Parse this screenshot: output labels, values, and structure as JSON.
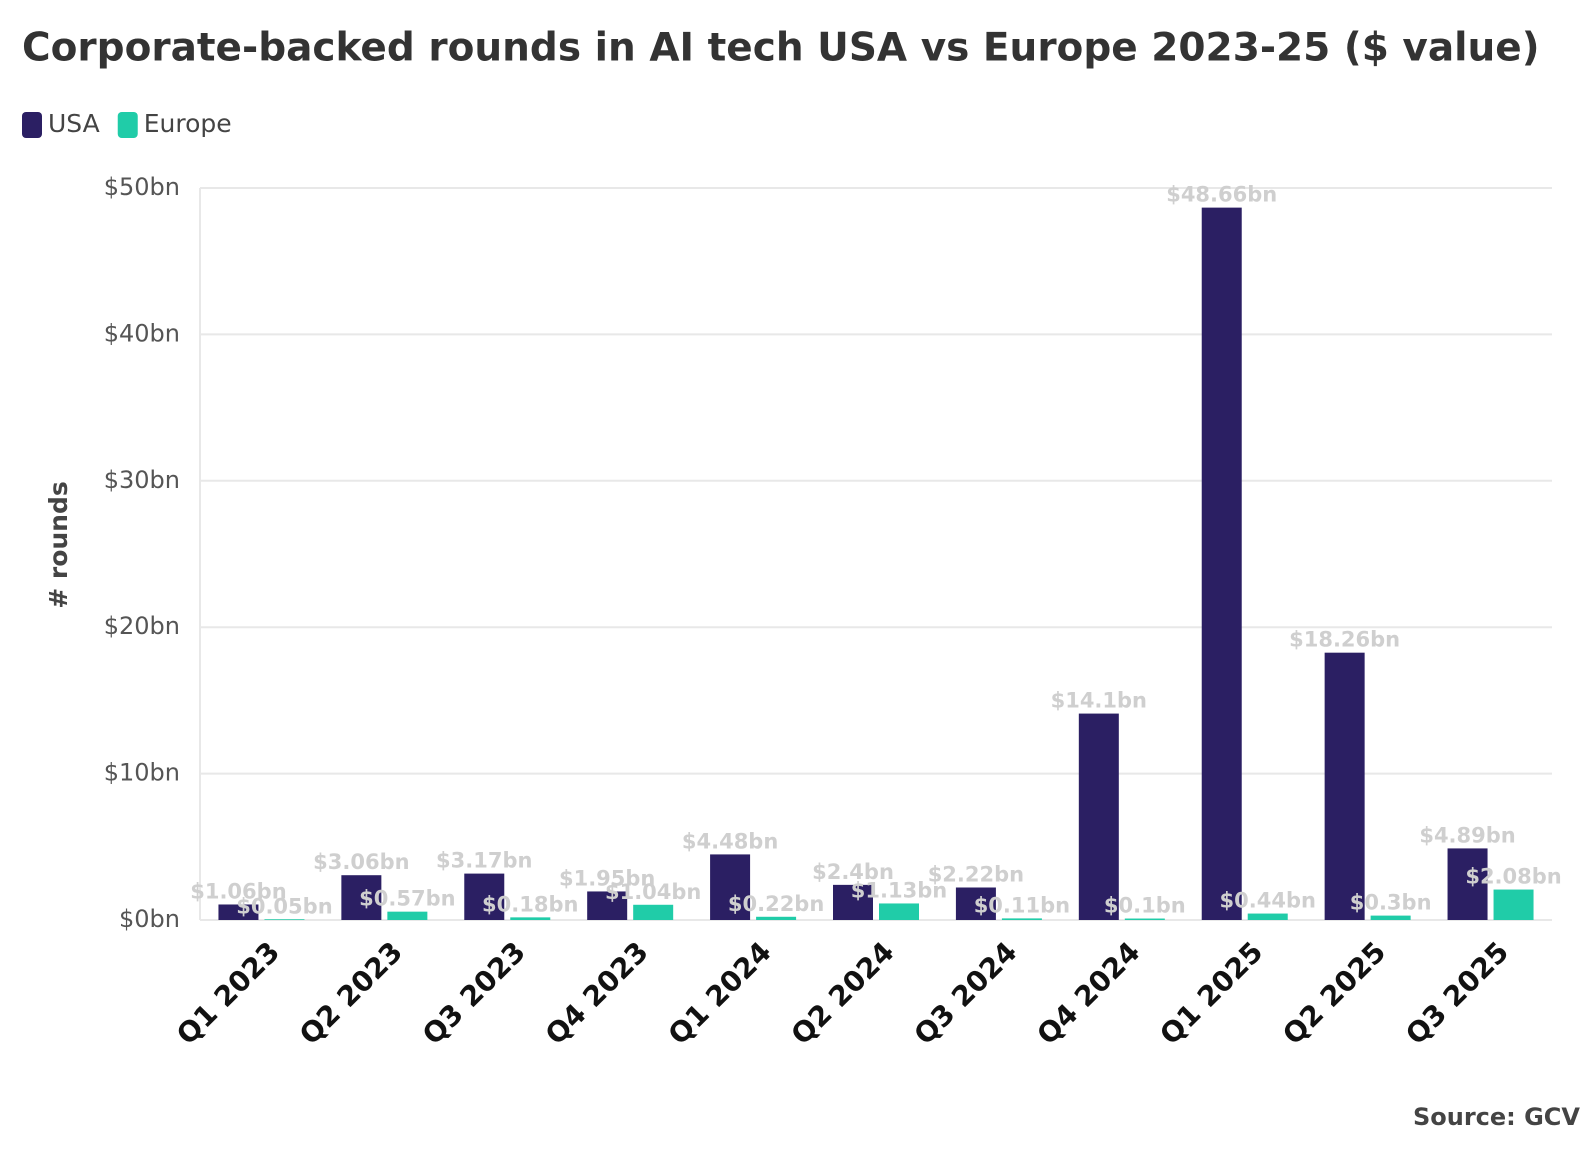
{
  "chart_data": {
    "type": "bar",
    "title": "Corporate-backed rounds in AI tech USA vs Europe 2023-25 ($ value)",
    "y_label": "# rounds",
    "source": "Source: GCV",
    "legend": "top-left",
    "grid": true,
    "categories": [
      "Q1 2023",
      "Q2 2023",
      "Q3 2023",
      "Q4 2023",
      "Q1 2024",
      "Q2 2024",
      "Q3 2024",
      "Q4 2024",
      "Q1 2025",
      "Q2 2025",
      "Q3 2025"
    ],
    "series": [
      {
        "name": "USA",
        "color": "#2b1f63",
        "values": [
          1.06,
          3.06,
          3.17,
          1.95,
          4.48,
          2.4,
          2.22,
          14.1,
          48.66,
          18.26,
          4.89
        ],
        "value_labels": [
          "$1.06bn",
          "$3.06bn",
          "$3.17bn",
          "$1.95bn",
          "$4.48bn",
          "$2.4bn",
          "$2.22bn",
          "$14.1bn",
          "$48.66bn",
          "$18.26bn",
          "$4.89bn"
        ]
      },
      {
        "name": "Europe",
        "color": "#20cca8",
        "values": [
          0.05,
          0.57,
          0.18,
          1.04,
          0.22,
          1.13,
          0.11,
          0.1,
          0.44,
          0.3,
          2.08
        ],
        "value_labels": [
          "$0.05bn",
          "$0.57bn",
          "$0.18bn",
          "$1.04bn",
          "$0.22bn",
          "$1.13bn",
          "$0.11bn",
          "$0.1bn",
          "$0.44bn",
          "$0.3bn",
          "$2.08bn"
        ]
      }
    ],
    "ylim": [
      0,
      50
    ],
    "yticks": [
      {
        "value": 0,
        "label": "$0bn"
      },
      {
        "value": 10,
        "label": "$10bn"
      },
      {
        "value": 20,
        "label": "$20bn"
      },
      {
        "value": 30,
        "label": "$30bn"
      },
      {
        "value": 40,
        "label": "$40bn"
      },
      {
        "value": 50,
        "label": "$50bn"
      }
    ]
  }
}
